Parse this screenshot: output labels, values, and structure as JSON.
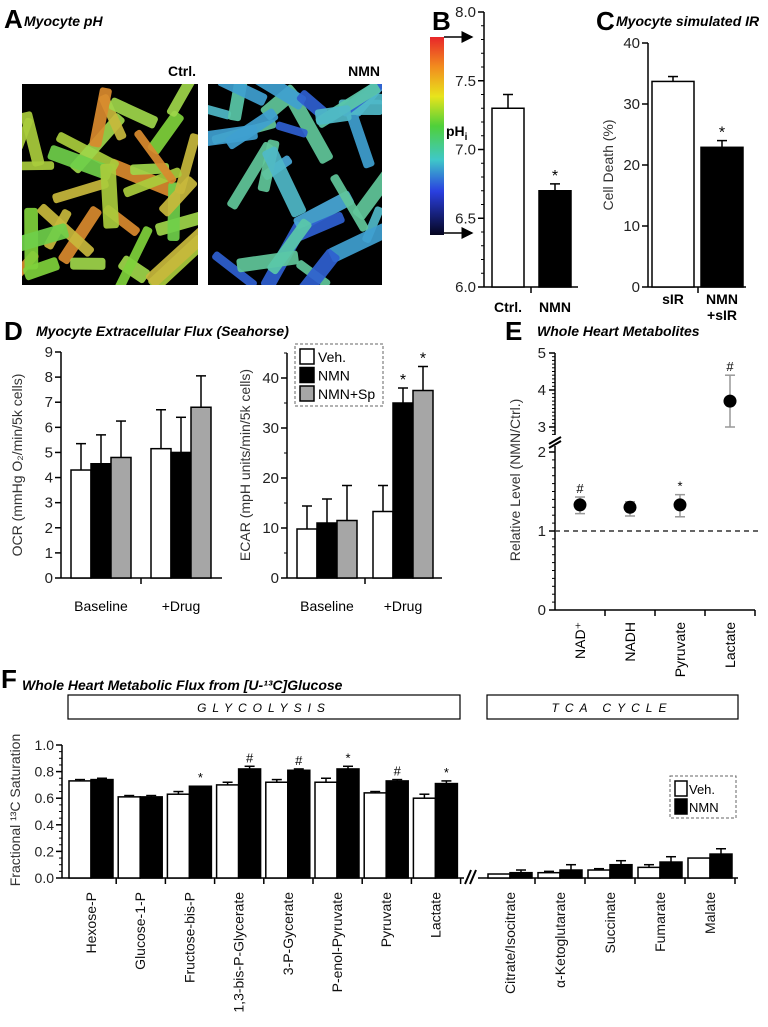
{
  "panel_a": {
    "letter": "A",
    "title": "Myocyte pH",
    "images": [
      {
        "label": "Ctrl."
      },
      {
        "label": "NMN"
      }
    ],
    "colorbar_label": "pH",
    "colorbar_sub": "i",
    "colors": {
      "ctrl_cells": [
        "#7fd13b",
        "#a9cc3c",
        "#c8b93c",
        "#d98a2e",
        "#6fcf4a",
        "#9ed64a"
      ],
      "nmn_cells": [
        "#4fb8c8",
        "#3f9fd0",
        "#5ac8a8",
        "#2f5fd0",
        "#61c79a",
        "#49a8d8"
      ]
    }
  },
  "panel_b": {
    "letter": "B"
  },
  "panel_c": {
    "letter": "C",
    "title": "Myocyte simulated IR"
  },
  "panel_d": {
    "letter": "D",
    "title": "Myocyte Extracellular Flux (Seahorse)",
    "legend": [
      "Veh.",
      "NMN",
      "NMN+Sp"
    ]
  },
  "panel_e": {
    "letter": "E",
    "title": "Whole Heart Metabolites"
  },
  "panel_f": {
    "letter": "F",
    "title": "Whole Heart Metabolic Flux from [U-¹³C]Glucose",
    "bands": [
      "GLYCOLYSIS",
      "TCA CYCLE"
    ],
    "legend": [
      "Veh.",
      "NMN"
    ]
  },
  "chart_data": [
    {
      "type": "bar",
      "panel": "B",
      "ylabel": "",
      "ylim": [
        6.0,
        8.0
      ],
      "yticks": [
        "6.0",
        "6.5",
        "7.0",
        "7.5",
        "8.0"
      ],
      "categories": [
        "Ctrl.",
        "NMN"
      ],
      "values": [
        7.3,
        6.7
      ],
      "errors": [
        0.1,
        0.05
      ],
      "significance": [
        "",
        "*"
      ],
      "colors": [
        "#ffffff",
        "#000000"
      ]
    },
    {
      "type": "bar",
      "panel": "C",
      "ylabel": "Cell Death (%)",
      "ylim": [
        0,
        40
      ],
      "yticks": [
        "0",
        "10",
        "20",
        "30",
        "40"
      ],
      "categories": [
        [
          "sIR"
        ],
        [
          "NMN",
          "+sIR"
        ]
      ],
      "values": [
        33.7,
        22.9
      ],
      "errors": [
        0.8,
        1.1
      ],
      "significance": [
        "",
        "*"
      ],
      "colors": [
        "#ffffff",
        "#000000"
      ]
    },
    {
      "type": "bar",
      "panel": "D",
      "ylabel": "OCR (mmHg O₂/min/5k cells)",
      "ylim": [
        0,
        9
      ],
      "yticks": [
        "0",
        "1",
        "2",
        "3",
        "4",
        "5",
        "6",
        "7",
        "8",
        "9"
      ],
      "categories": [
        "Baseline",
        "+Drug"
      ],
      "series": [
        {
          "name": "Veh.",
          "color": "#ffffff",
          "values": [
            4.3,
            5.15
          ],
          "errors": [
            1.05,
            1.55
          ],
          "significance": [
            "",
            ""
          ]
        },
        {
          "name": "NMN",
          "color": "#000000",
          "values": [
            4.55,
            5.0
          ],
          "errors": [
            1.15,
            1.4
          ],
          "significance": [
            "",
            ""
          ]
        },
        {
          "name": "NMN+Sp",
          "color": "#a6a6a6",
          "values": [
            4.8,
            6.8
          ],
          "errors": [
            1.45,
            1.25
          ],
          "significance": [
            "",
            ""
          ]
        }
      ]
    },
    {
      "type": "bar",
      "panel": "D",
      "ylabel": "ECAR (mpH units/min/5k cells)",
      "ylim": [
        0,
        45
      ],
      "yticks": [
        "0",
        "10",
        "20",
        "30",
        "40"
      ],
      "categories": [
        "Baseline",
        "+Drug"
      ],
      "legend": "top-left",
      "series": [
        {
          "name": "Veh.",
          "color": "#ffffff",
          "values": [
            9.8,
            13.3
          ],
          "errors": [
            4.6,
            5.2
          ],
          "significance": [
            "",
            ""
          ]
        },
        {
          "name": "NMN",
          "color": "#000000",
          "values": [
            11.0,
            35.0
          ],
          "errors": [
            4.8,
            3.0
          ],
          "significance": [
            "",
            "*"
          ]
        },
        {
          "name": "NMN+Sp",
          "color": "#a6a6a6",
          "values": [
            11.5,
            37.5
          ],
          "errors": [
            7.0,
            4.8
          ],
          "significance": [
            "",
            "*"
          ]
        }
      ]
    },
    {
      "type": "scatter",
      "panel": "E",
      "ylabel": "Relative Level (NMN/Ctrl.)",
      "ylim": [
        0,
        5
      ],
      "yticks": [
        "0",
        "1",
        "2",
        "3",
        "4",
        "5"
      ],
      "axis_break": [
        2,
        3
      ],
      "reference_line": 1,
      "categories": [
        "NAD⁺",
        "NADH",
        "Pyruvate",
        "Lactate"
      ],
      "values": [
        1.33,
        1.3,
        1.33,
        3.7
      ],
      "err_low": [
        1.22,
        1.19,
        1.18,
        3.0
      ],
      "err_high": [
        1.43,
        1.37,
        1.46,
        4.4
      ],
      "significance": [
        "#",
        "",
        "*",
        "#"
      ]
    },
    {
      "type": "bar",
      "panel": "F",
      "ylabel": "Fractional ¹³C Saturation",
      "ylim": [
        0,
        1.0
      ],
      "yticks": [
        "0.0",
        "0.2",
        "0.4",
        "0.6",
        "0.8",
        "1.0"
      ],
      "legend": "right",
      "groups": [
        {
          "name": "GLYCOLYSIS",
          "categories": [
            "Hexose-P",
            "Glucose-1-P",
            "Fructose-bis-P",
            "1,3-bis-P-Glycerate",
            "3-P-Gycerate",
            "P-enol-Pyruvate",
            "Pyruvate",
            "Lactate"
          ]
        },
        {
          "name": "TCA CYCLE",
          "categories": [
            "Citrate/Isocitrate",
            "α-Ketoglutarate",
            "Succinate",
            "Fumarate",
            "Malate"
          ]
        }
      ],
      "series": [
        {
          "name": "Veh.",
          "color": "#ffffff",
          "values": [
            0.73,
            0.61,
            0.63,
            0.7,
            0.72,
            0.72,
            0.64,
            0.6,
            0.03,
            0.04,
            0.06,
            0.08,
            0.15
          ],
          "errors": [
            0.01,
            0.01,
            0.02,
            0.02,
            0.02,
            0.03,
            0.01,
            0.03,
            0.0,
            0.01,
            0.01,
            0.02,
            0.0
          ],
          "significance": [
            "",
            "",
            "",
            "",
            "",
            "",
            "",
            "",
            "",
            "",
            "",
            "",
            ""
          ]
        },
        {
          "name": "NMN",
          "color": "#000000",
          "values": [
            0.74,
            0.61,
            0.69,
            0.82,
            0.81,
            0.82,
            0.73,
            0.71,
            0.04,
            0.06,
            0.1,
            0.12,
            0.18
          ],
          "errors": [
            0.01,
            0.01,
            0.0,
            0.02,
            0.01,
            0.02,
            0.01,
            0.02,
            0.02,
            0.04,
            0.03,
            0.04,
            0.04
          ],
          "significance": [
            "",
            "",
            "*",
            "#",
            "#",
            "*",
            "#",
            "*",
            "",
            "",
            "",
            "",
            ""
          ]
        }
      ]
    }
  ]
}
